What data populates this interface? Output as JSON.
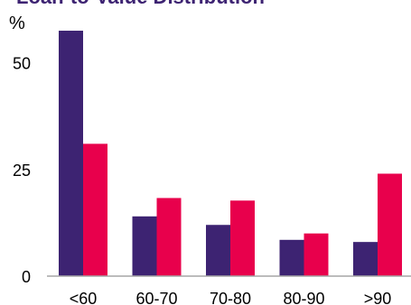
{
  "chart_data": {
    "type": "bar",
    "title": "Loan-to-Value Distribution",
    "unit_label": "%",
    "xlabel": "",
    "ylabel": "",
    "categories": [
      "<60",
      "60-70",
      "70-80",
      "80-90",
      ">90"
    ],
    "series": [
      {
        "values": [
          57.5,
          14,
          12,
          8.5,
          8
        ]
      },
      {
        "values": [
          31,
          18.3,
          17.7,
          10,
          24
        ]
      }
    ],
    "yticks": [
      0,
      25,
      50
    ],
    "ylim": [
      0,
      60
    ],
    "grid": false,
    "legend": "none"
  },
  "colors": {
    "series_0": "#3d2372",
    "series_1": "#e8004c",
    "axis": "#a6a6a6",
    "title": "#3d2372"
  }
}
